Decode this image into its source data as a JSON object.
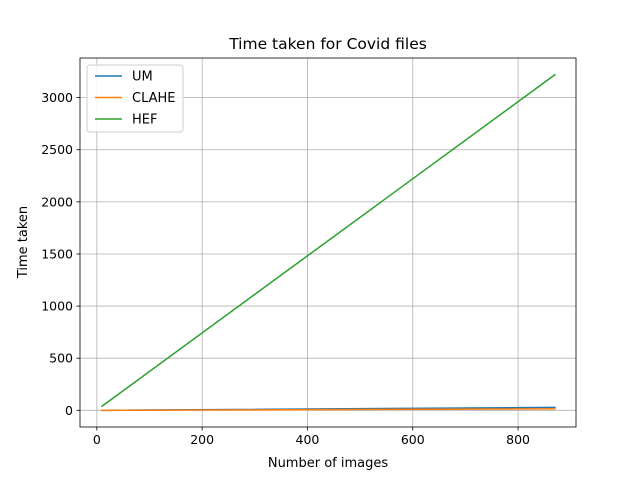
{
  "chart_data": {
    "type": "line",
    "title": "Time taken for Covid files",
    "xlabel": "Number of images",
    "ylabel": "Time taken",
    "xlim": [
      -32,
      910
    ],
    "ylim": [
      -160,
      3380
    ],
    "xticks": [
      0,
      200,
      400,
      600,
      800
    ],
    "yticks": [
      0,
      500,
      1000,
      1500,
      2000,
      2500,
      3000
    ],
    "grid": true,
    "legend_position": "top-left",
    "series": [
      {
        "name": "UM",
        "color": "#1f77b4",
        "x": [
          10,
          870
        ],
        "y": [
          0,
          28
        ]
      },
      {
        "name": "CLAHE",
        "color": "#ff7f0e",
        "x": [
          10,
          870
        ],
        "y": [
          0,
          14
        ]
      },
      {
        "name": "HEF",
        "color": "#2ca02c",
        "x": [
          10,
          870
        ],
        "y": [
          40,
          3220
        ]
      }
    ]
  }
}
